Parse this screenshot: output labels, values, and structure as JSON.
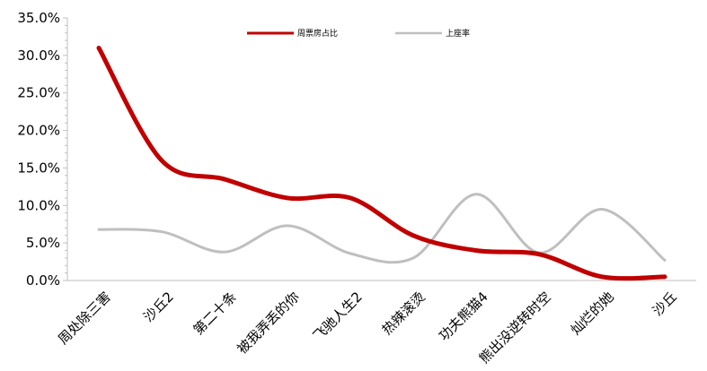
{
  "chart_data": {
    "type": "line",
    "title": "",
    "xlabel": "",
    "ylabel": "",
    "categories": [
      "周处除三害",
      "沙丘2",
      "第二十条",
      "被我弄丢的你",
      "飞驰人生2",
      "热辣滚烫",
      "功夫熊猫4",
      "熊出没逆转时空",
      "灿烂的她",
      "沙丘"
    ],
    "ylim": [
      0,
      35
    ],
    "yticks": [
      "0.0%",
      "5.0%",
      "10.0%",
      "15.0%",
      "20.0%",
      "25.0%",
      "30.0%",
      "35.0%"
    ],
    "legend_position": "top",
    "grid": false,
    "smooth": true,
    "series": [
      {
        "name": "周票房占比",
        "color": "#C00000",
        "values": [
          31.0,
          16.0,
          13.5,
          11.0,
          11.0,
          6.0,
          4.0,
          3.5,
          0.5,
          0.5
        ]
      },
      {
        "name": "上座率",
        "color": "#BFBFBF",
        "values": [
          6.8,
          6.5,
          3.8,
          7.3,
          3.6,
          3.0,
          11.5,
          3.7,
          9.5,
          2.7
        ]
      }
    ]
  }
}
